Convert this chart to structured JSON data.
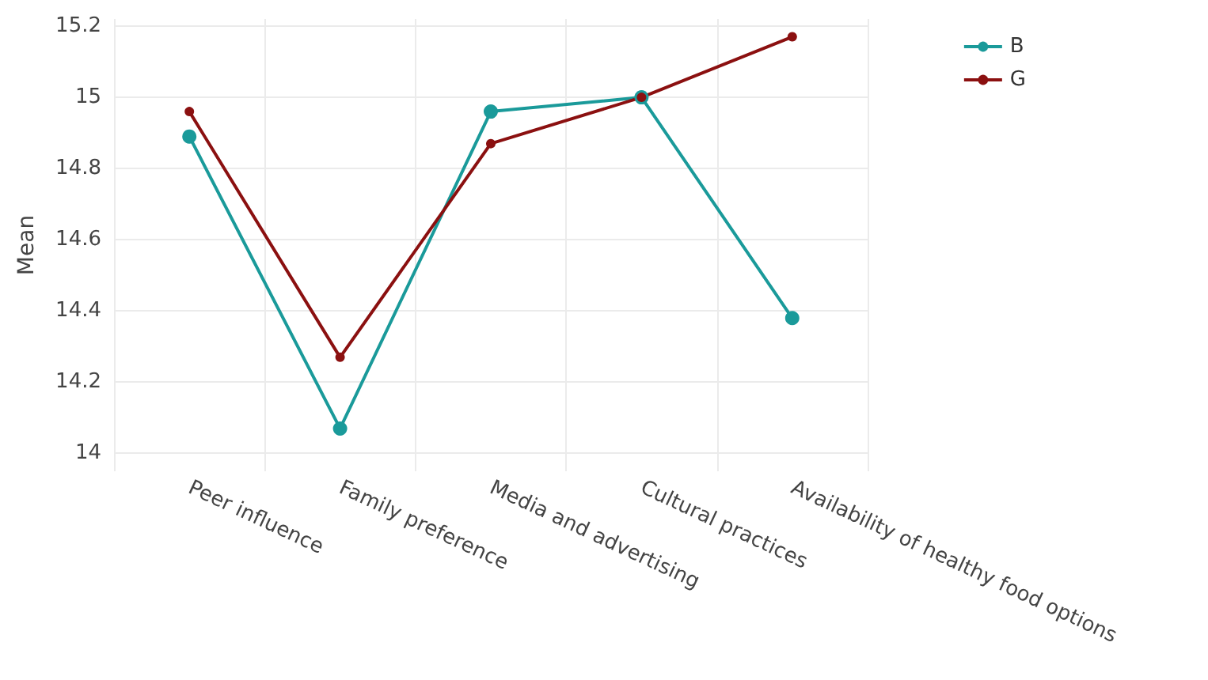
{
  "chart_data": {
    "type": "line",
    "ylabel": "Mean",
    "categories": [
      "Peer influence",
      "Family preference",
      "Media and advertising",
      "Cultural practices",
      "Availability of healthy food options"
    ],
    "series": [
      {
        "name": "B",
        "color": "#1a9a9a",
        "values": [
          14.89,
          14.07,
          14.96,
          15.0,
          14.38
        ]
      },
      {
        "name": "G",
        "color": "#8b1010",
        "values": [
          14.96,
          14.27,
          14.87,
          15.0,
          15.17
        ]
      }
    ],
    "ylim": [
      13.95,
      15.22
    ],
    "yticks": [
      14,
      {
        "value": 14.2,
        "label": "14.2"
      },
      {
        "value": 14.4,
        "label": "14.4"
      },
      {
        "value": 14.6,
        "label": "14.6"
      },
      {
        "value": 14.8,
        "label": "14.8"
      },
      15,
      {
        "value": 15.2,
        "label": "15.2"
      }
    ],
    "grid": true,
    "legend": "top right",
    "marker": "circle",
    "line_style": "solid"
  }
}
